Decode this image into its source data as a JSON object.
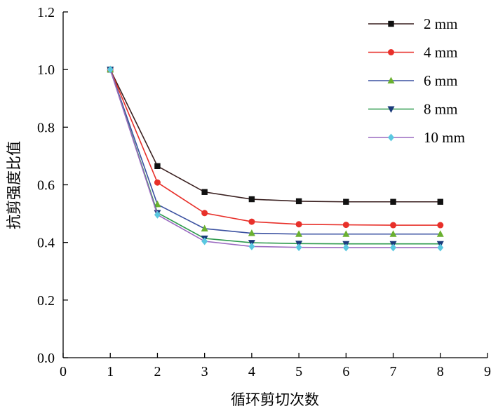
{
  "chart_data": {
    "type": "line",
    "title": "",
    "xlabel": "循环剪切次数",
    "ylabel": "抗剪强度比值",
    "xlim": [
      0,
      9
    ],
    "ylim": [
      0,
      1.2
    ],
    "xticks": [
      "0",
      "1",
      "2",
      "3",
      "4",
      "5",
      "6",
      "7",
      "8",
      "9"
    ],
    "yticks": [
      "0.0",
      "0.2",
      "0.4",
      "0.6",
      "0.8",
      "1.0",
      "1.2"
    ],
    "grid": false,
    "legend_position": "top-right",
    "x": [
      1,
      2,
      3,
      4,
      5,
      6,
      7,
      8
    ],
    "series": [
      {
        "name": "2 mm",
        "color": "#3a2020",
        "marker": "square",
        "values": [
          1.0,
          0.665,
          0.575,
          0.55,
          0.543,
          0.541,
          0.541,
          0.541
        ]
      },
      {
        "name": "4 mm",
        "color": "#e8302a",
        "marker": "circle",
        "values": [
          1.0,
          0.608,
          0.502,
          0.472,
          0.463,
          0.461,
          0.46,
          0.46
        ]
      },
      {
        "name": "6 mm",
        "color": "#3a50a0",
        "marker": "triangle-up",
        "values": [
          1.0,
          0.532,
          0.448,
          0.432,
          0.429,
          0.429,
          0.429,
          0.429
        ]
      },
      {
        "name": "8 mm",
        "color": "#2e9a4e",
        "marker": "triangle-down",
        "values": [
          1.0,
          0.503,
          0.414,
          0.399,
          0.396,
          0.395,
          0.395,
          0.395
        ]
      },
      {
        "name": "10 mm",
        "color": "#9a6ac0",
        "marker": "diamond",
        "values": [
          1.0,
          0.496,
          0.404,
          0.386,
          0.383,
          0.382,
          0.382,
          0.382
        ]
      }
    ]
  },
  "marker_colors": {
    "square": "#111111",
    "circle": "#e8302a",
    "triangle-up": "#6ab030",
    "triangle-down": "#1a3a7a",
    "diamond": "#5ac8e0"
  }
}
